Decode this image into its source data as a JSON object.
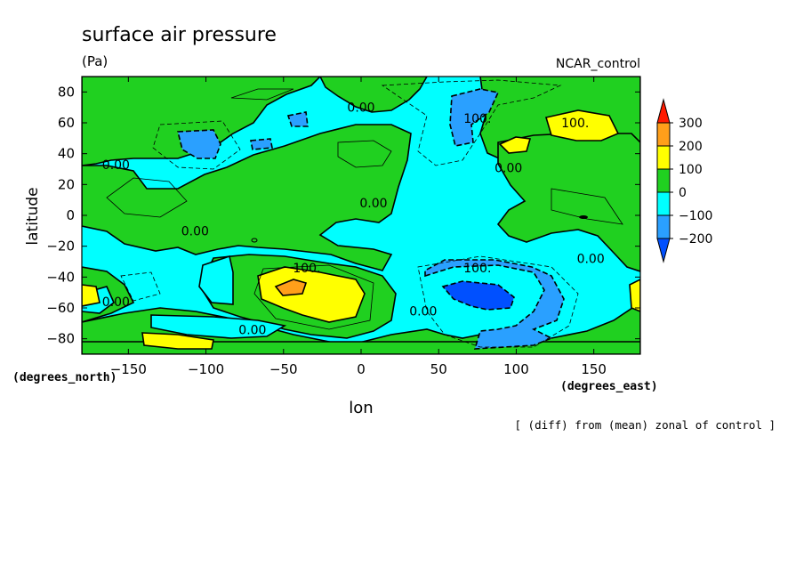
{
  "chart_data": {
    "type": "contour",
    "title": "surface air pressure",
    "units": "(Pa)",
    "source_label": "NCAR_control",
    "xlabel": "lon",
    "ylabel": "latitude",
    "x_unit_label": "(degrees_east)",
    "y_unit_label": "(degrees_north)",
    "caption": "[ (diff) from (mean) zonal of control ]",
    "xlim": [
      -180,
      180
    ],
    "ylim": [
      -90,
      90
    ],
    "xticks": [
      -150,
      -100,
      -50,
      0,
      50,
      100,
      150
    ],
    "yticks": [
      80,
      60,
      40,
      20,
      0,
      -20,
      -40,
      -60,
      -80
    ],
    "levels": [
      -300,
      -200,
      -100,
      0,
      100,
      200,
      300
    ],
    "colorbar": {
      "labels": [
        "300",
        "200",
        "100",
        "0",
        "−100",
        "−200"
      ],
      "colors": [
        "#ff1a00",
        "#ff9f1a",
        "#ffff00",
        "#20d020",
        "#00ffff",
        "#2aa0ff",
        "#0050ff"
      ]
    },
    "contour_labels": [
      {
        "text": "0.00",
        "lon": 0,
        "lat": 70
      },
      {
        "text": "100.",
        "lon": 75,
        "lat": 63
      },
      {
        "text": "100.",
        "lon": 138,
        "lat": 60
      },
      {
        "text": "0.00",
        "lon": -158,
        "lat": 33
      },
      {
        "text": "0.00",
        "lon": 95,
        "lat": 31
      },
      {
        "text": "0.00",
        "lon": 8,
        "lat": 8
      },
      {
        "text": "0.00",
        "lon": -107,
        "lat": -10
      },
      {
        "text": "0.00",
        "lon": 148,
        "lat": -28
      },
      {
        "text": "100.",
        "lon": -35,
        "lat": -34
      },
      {
        "text": "100.",
        "lon": 75,
        "lat": -34
      },
      {
        "text": "0.00",
        "lon": -158,
        "lat": -56
      },
      {
        "text": "0.00",
        "lon": 40,
        "lat": -62
      },
      {
        "text": "0.00",
        "lon": -70,
        "lat": -74
      }
    ]
  }
}
